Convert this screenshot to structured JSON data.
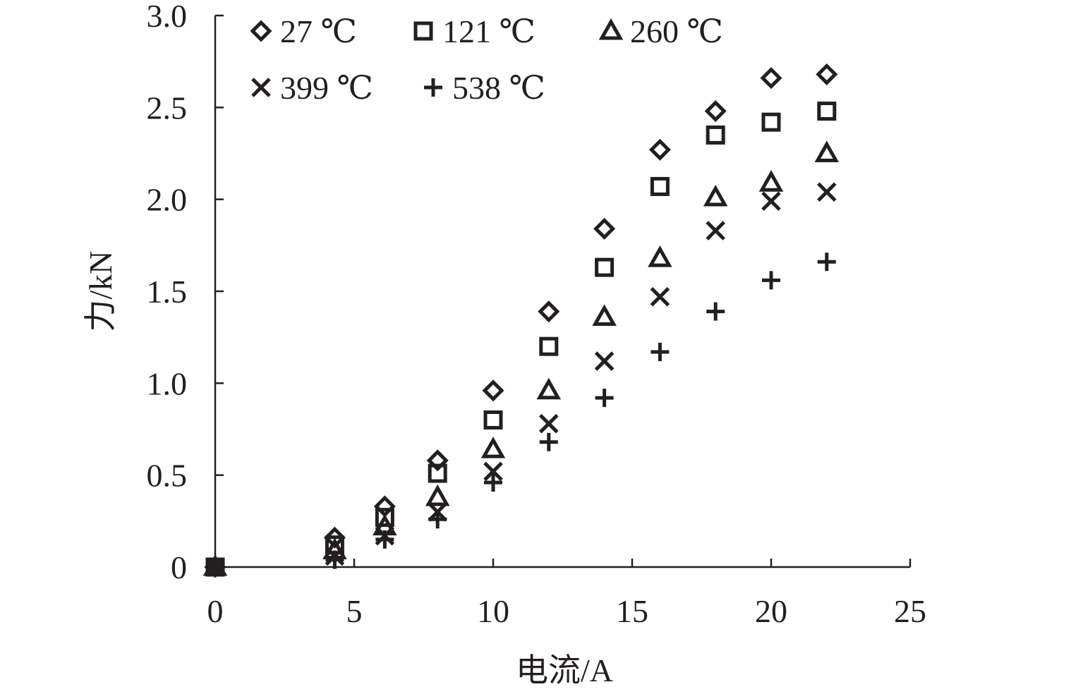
{
  "chart_data": {
    "type": "scatter",
    "title": "",
    "xlabel": "电流/A",
    "ylabel": "力/kN",
    "xlim": [
      0,
      25
    ],
    "ylim": [
      0,
      3.0
    ],
    "xticks": [
      0,
      5,
      10,
      15,
      20,
      25
    ],
    "xtick_labels": [
      "0",
      "5",
      "10",
      "15",
      "20",
      "25"
    ],
    "yticks": [
      0,
      0.5,
      1.0,
      1.5,
      2.0,
      2.5,
      3.0
    ],
    "ytick_labels": [
      "0",
      "0.5",
      "1.0",
      "1.5",
      "2.0",
      "2.5",
      "3.0"
    ],
    "grid": false,
    "legend_position": "top",
    "series": [
      {
        "name": "27 ℃",
        "marker": "diamond-icon",
        "x": [
          0,
          4.3,
          6.1,
          8.0,
          10.0,
          12.0,
          14.0,
          16.0,
          18.0,
          20.0,
          22.0
        ],
        "y": [
          0,
          0.16,
          0.33,
          0.58,
          0.96,
          1.39,
          1.84,
          2.27,
          2.48,
          2.66,
          2.68
        ]
      },
      {
        "name": "121 ℃",
        "marker": "square-icon",
        "x": [
          0,
          4.3,
          6.1,
          8.0,
          10.0,
          12.0,
          14.0,
          16.0,
          18.0,
          20.0,
          22.0
        ],
        "y": [
          0,
          0.12,
          0.27,
          0.51,
          0.8,
          1.2,
          1.63,
          2.07,
          2.35,
          2.42,
          2.48
        ]
      },
      {
        "name": "260 ℃",
        "marker": "triangle-icon",
        "x": [
          0,
          4.3,
          6.1,
          8.0,
          10.0,
          12.0,
          14.0,
          16.0,
          18.0,
          20.0,
          22.0
        ],
        "y": [
          0,
          0.09,
          0.22,
          0.38,
          0.64,
          0.96,
          1.36,
          1.68,
          2.01,
          2.09,
          2.25
        ]
      },
      {
        "name": "399 ℃",
        "marker": "x-icon",
        "x": [
          0,
          4.3,
          6.1,
          8.0,
          10.0,
          12.0,
          14.0,
          16.0,
          18.0,
          20.0,
          22.0
        ],
        "y": [
          0,
          0.06,
          0.17,
          0.3,
          0.52,
          0.78,
          1.12,
          1.47,
          1.83,
          1.99,
          2.04
        ]
      },
      {
        "name": "538 ℃",
        "marker": "plus-icon",
        "x": [
          0,
          4.3,
          6.1,
          8.0,
          10.0,
          12.0,
          14.0,
          16.0,
          18.0,
          20.0,
          22.0
        ],
        "y": [
          0,
          0.04,
          0.15,
          0.26,
          0.46,
          0.68,
          0.92,
          1.17,
          1.39,
          1.56,
          1.66
        ]
      }
    ]
  }
}
